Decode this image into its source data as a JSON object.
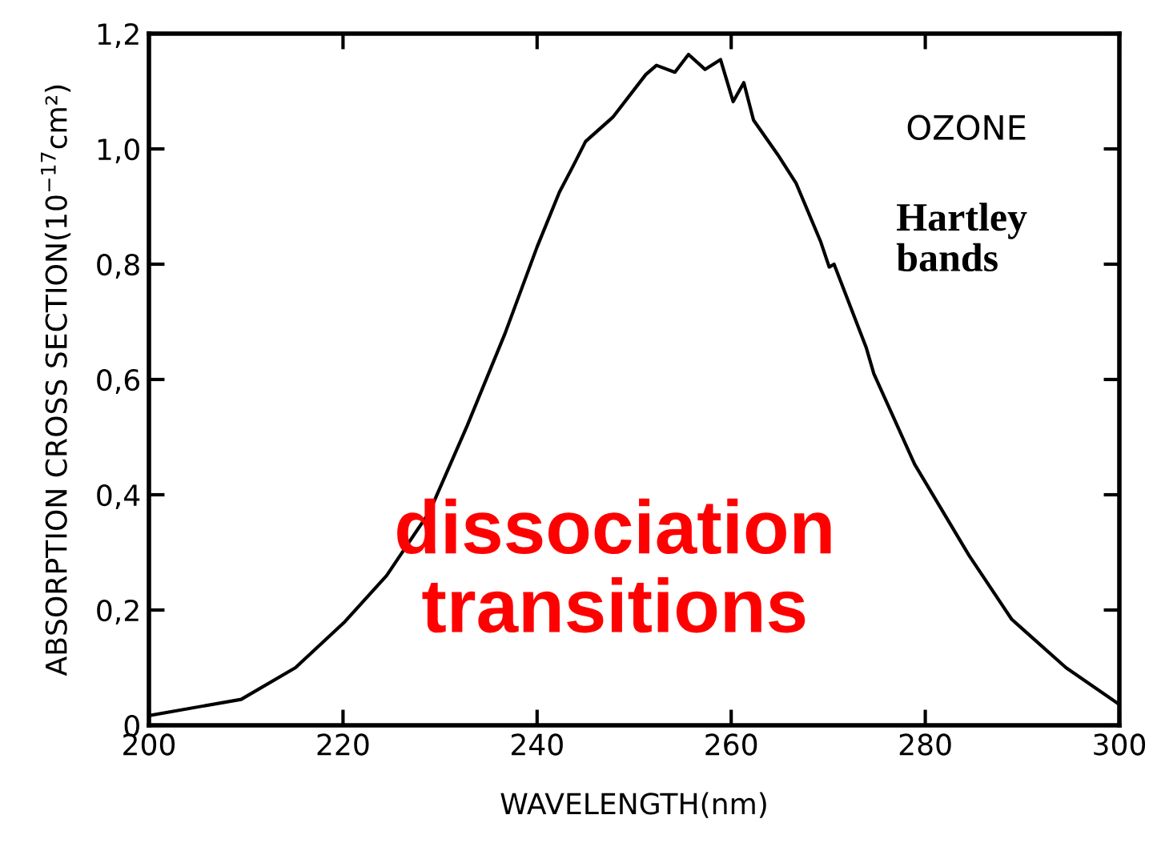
{
  "chart_data": {
    "type": "line",
    "xlabel": "WAVELENGTH(nm)",
    "ylabel": "ABSORPTION CROSS SECTION(10$^{−17}$cm²)",
    "annotations": [
      "OZONE",
      "Hartley\nbands",
      "dissociation\ntransitions"
    ],
    "series": [
      {
        "color": "#000000",
        "x": [
          200,
          209.5,
          215.1,
          220.2,
          224.5,
          228.9,
          232.8,
          236.7,
          240,
          242.3,
          243.7,
          245,
          247.8,
          251.2,
          252.3,
          254.2,
          255.6,
          257.3,
          258.9,
          260.2,
          261.3,
          262.3,
          264.8,
          266.7,
          269.2,
          270.1,
          270.6,
          273.9,
          274.7,
          278.9,
          284.5,
          288.9,
          294.5,
          300
        ],
        "values": [
          0.017,
          0.045,
          0.1,
          0.18,
          0.26,
          0.37,
          0.52,
          0.68,
          0.83,
          0.925,
          0.97,
          1.013,
          1.055,
          1.129,
          1.145,
          1.133,
          1.164,
          1.138,
          1.155,
          1.082,
          1.115,
          1.05,
          0.99,
          0.94,
          0.84,
          0.795,
          0.8,
          0.656,
          0.61,
          0.453,
          0.295,
          0.184,
          0.1,
          0.036
        ]
      }
    ],
    "xlim": [
      200,
      300
    ],
    "xticks": [
      200,
      220,
      240,
      260,
      280,
      300
    ],
    "ylim": [
      0,
      1.2
    ],
    "yticks": [
      0,
      {
        "value": 0.2,
        "label": "0,2"
      },
      {
        "value": 0.4,
        "label": "0,4"
      },
      {
        "value": 0.6,
        "label": "0,6"
      },
      {
        "value": 0.8,
        "label": "0,8"
      },
      {
        "value": 1.0,
        "label": "1,0"
      },
      {
        "value": 1.2,
        "label": "1,2"
      }
    ],
    "grid": false,
    "legend": false,
    "marker": "none",
    "line_style": "solid"
  }
}
